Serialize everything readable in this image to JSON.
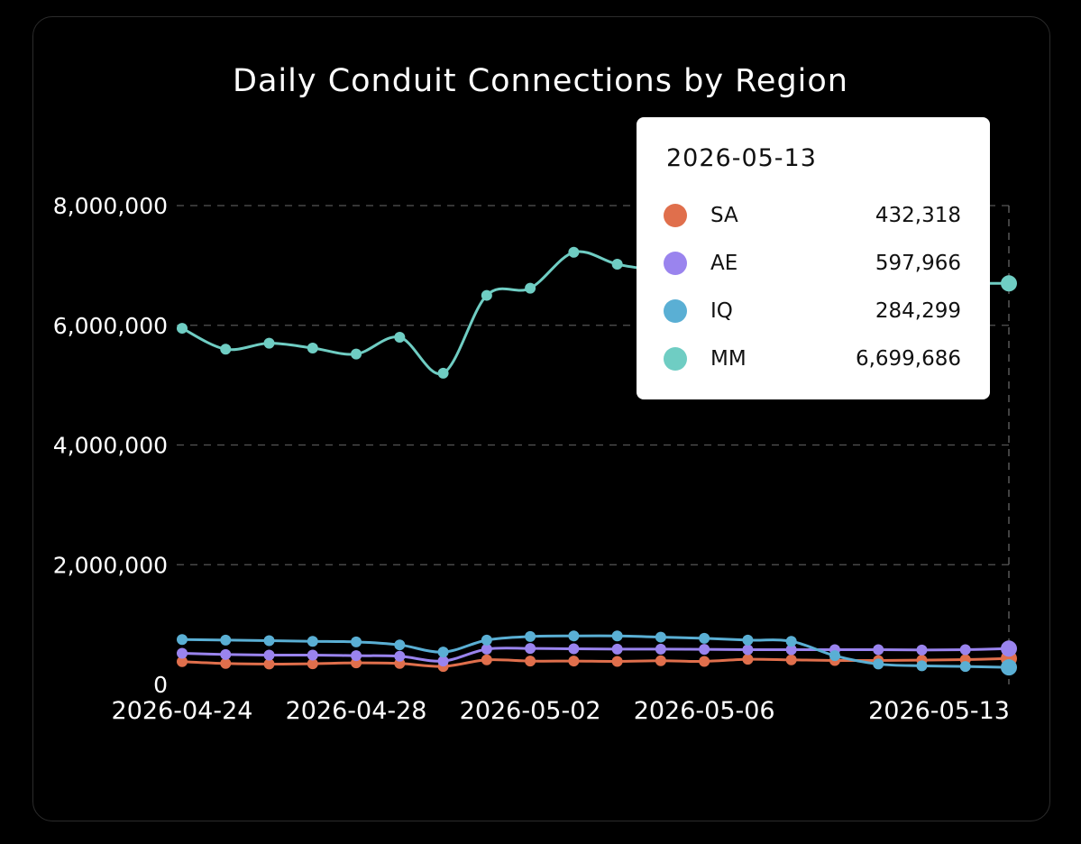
{
  "chart_data": {
    "type": "line",
    "title": "Daily Conduit Connections by Region",
    "xlabel": "",
    "ylabel": "",
    "ylim": [
      0,
      8000000
    ],
    "yticks": [
      0,
      2000000,
      4000000,
      6000000,
      8000000
    ],
    "ytick_labels": [
      "0",
      "2,000,000",
      "4,000,000",
      "6,000,000",
      "8,000,000"
    ],
    "x": [
      "2026-04-24",
      "2026-04-25",
      "2026-04-26",
      "2026-04-27",
      "2026-04-28",
      "2026-04-29",
      "2026-04-30",
      "2026-05-01",
      "2026-05-02",
      "2026-05-03",
      "2026-05-04",
      "2026-05-05",
      "2026-05-06",
      "2026-05-07",
      "2026-05-08",
      "2026-05-09",
      "2026-05-10",
      "2026-05-11",
      "2026-05-12",
      "2026-05-13"
    ],
    "xtick_labels": [
      "2026-04-24",
      "2026-04-28",
      "2026-05-02",
      "2026-05-06",
      "2026-05-13"
    ],
    "grid": true,
    "series": [
      {
        "name": "SA",
        "color": "#e06f4c",
        "values": [
          380000,
          350000,
          340000,
          345000,
          360000,
          350000,
          300000,
          410000,
          390000,
          390000,
          385000,
          395000,
          385000,
          420000,
          410000,
          400000,
          400000,
          405000,
          415000,
          432318
        ]
      },
      {
        "name": "AE",
        "color": "#9a84ee",
        "values": [
          520000,
          500000,
          490000,
          490000,
          480000,
          470000,
          390000,
          590000,
          600000,
          595000,
          590000,
          590000,
          585000,
          580000,
          580000,
          580000,
          580000,
          575000,
          580000,
          597966
        ]
      },
      {
        "name": "IQ",
        "color": "#5aafd4",
        "values": [
          750000,
          740000,
          730000,
          720000,
          710000,
          660000,
          540000,
          740000,
          800000,
          810000,
          810000,
          790000,
          770000,
          740000,
          720000,
          480000,
          340000,
          310000,
          300000,
          284299
        ]
      },
      {
        "name": "MM",
        "color": "#6fcdc3",
        "values": [
          5950000,
          5600000,
          5700000,
          5620000,
          5520000,
          5800000,
          5200000,
          6500000,
          6620000,
          7220000,
          7020000,
          6900000,
          6750000,
          6750000,
          6700000,
          6700000,
          6700000,
          6700000,
          6700000,
          6699686
        ]
      }
    ]
  },
  "tooltip": {
    "date": "2026-05-13",
    "rows": [
      {
        "name": "SA",
        "value": "432,318",
        "color": "#e06f4c"
      },
      {
        "name": "AE",
        "value": "597,966",
        "color": "#9a84ee"
      },
      {
        "name": "IQ",
        "value": "284,299",
        "color": "#5aafd4"
      },
      {
        "name": "MM",
        "value": "6,699,686",
        "color": "#6fcdc3"
      }
    ]
  }
}
